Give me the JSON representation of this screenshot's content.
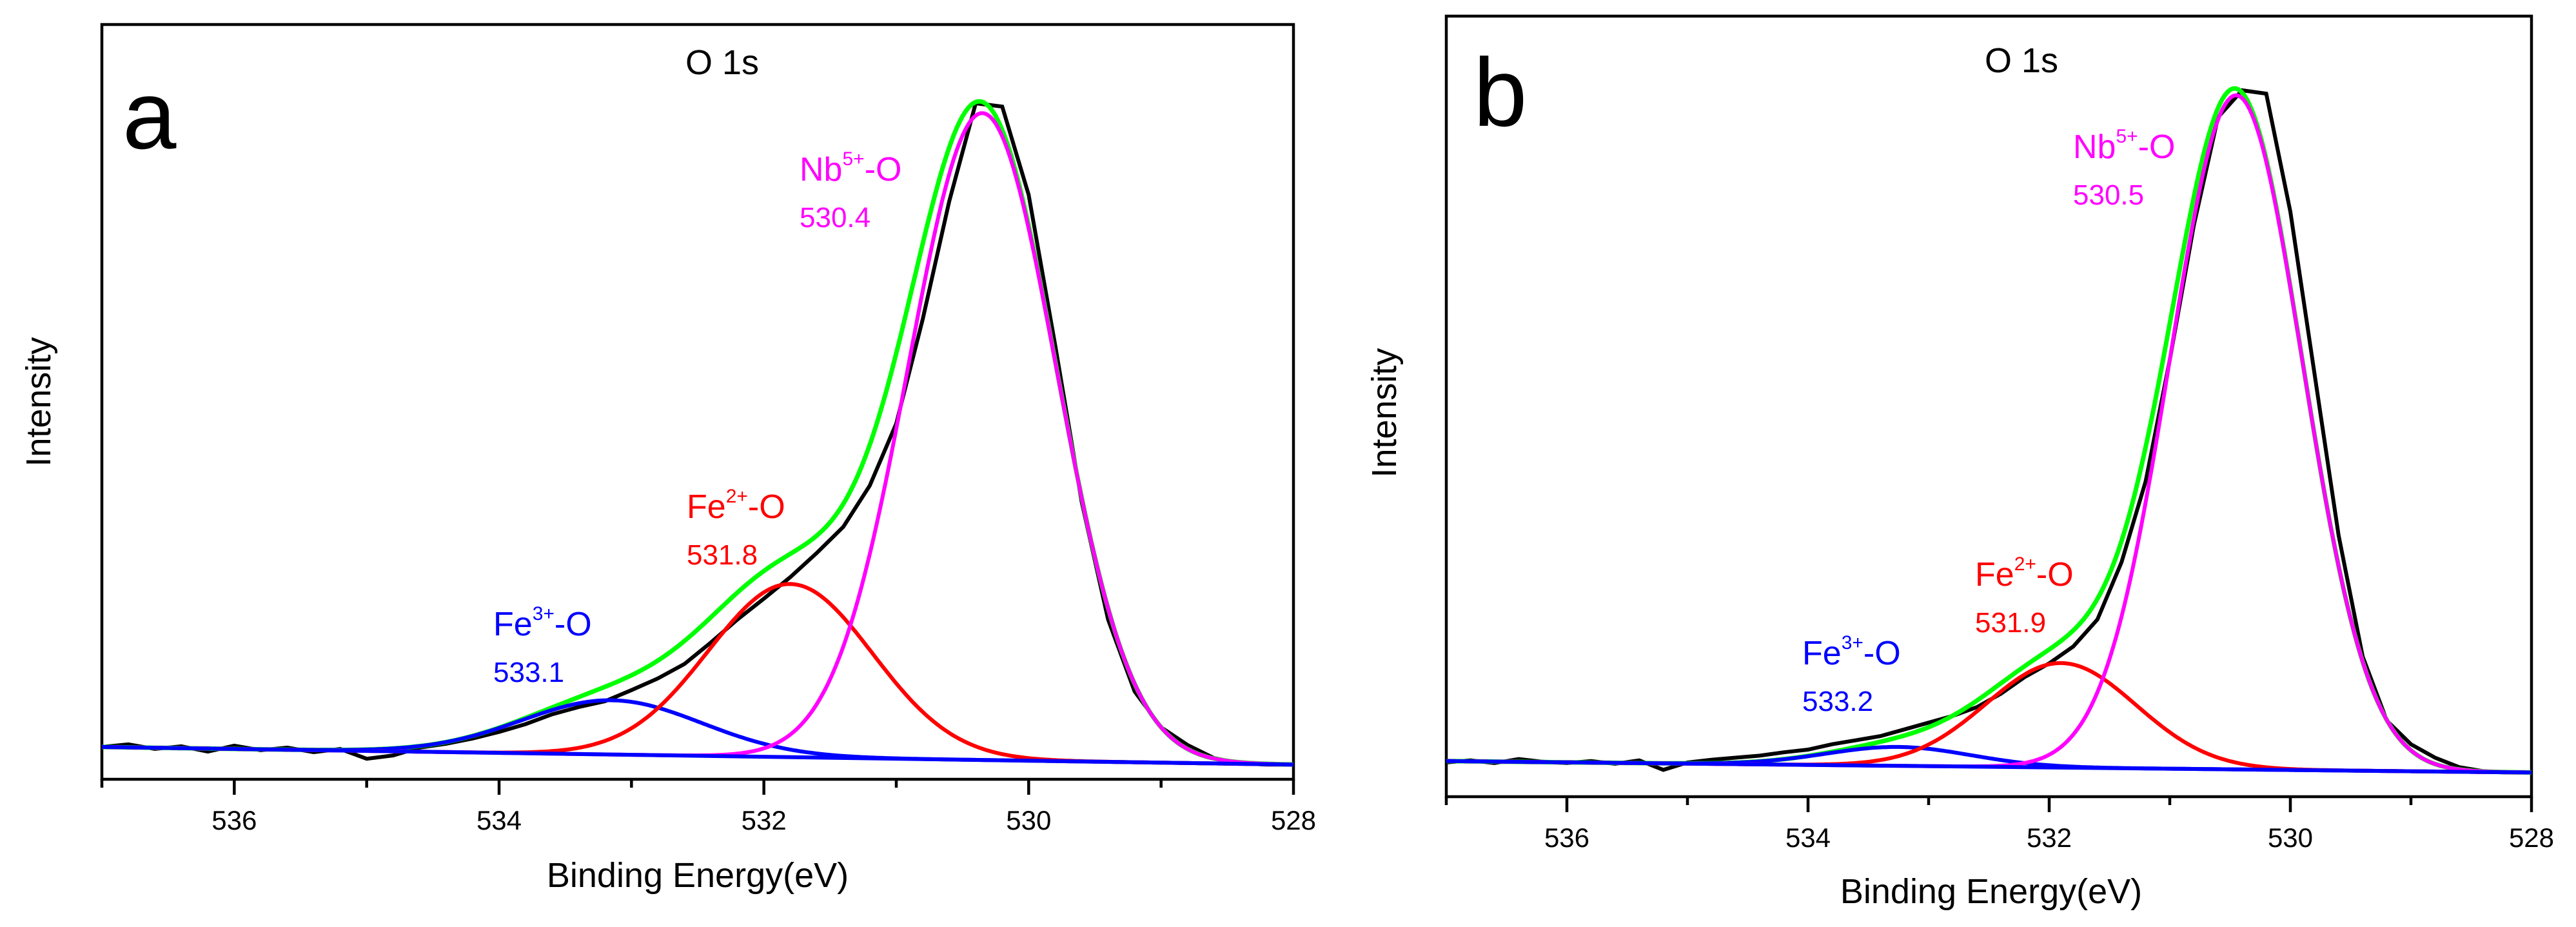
{
  "chart_data": [
    {
      "type": "line",
      "panel_label": "a",
      "title": "O 1s",
      "xlabel": "Binding Energy(eV)",
      "ylabel": "Intensity",
      "xlim": [
        537,
        528
      ],
      "x_reversed": true,
      "ylim": [
        0,
        1.05
      ],
      "grid": false,
      "xticks": [
        "536",
        "534",
        "532",
        "530",
        "528"
      ],
      "components": [
        {
          "element": "Nb",
          "charge": "5+",
          "suffix": "-O",
          "energy": "530.4",
          "color": "#ff00ff",
          "center": 530.35,
          "height": 0.99,
          "sigma": 0.56
        },
        {
          "element": "Fe",
          "charge": "2+",
          "suffix": "-O",
          "energy": "531.8",
          "color": "#ff0000",
          "center": 531.8,
          "height": 0.265,
          "sigma": 0.62
        },
        {
          "element": "Fe",
          "charge": "3+",
          "suffix": "-O",
          "energy": "533.1",
          "color": "#0000ff",
          "center": 533.15,
          "height": 0.083,
          "sigma": 0.68
        }
      ],
      "baseline": {
        "color": "#0000ff",
        "left": 0.005,
        "right": -0.022
      },
      "envelope_color": "#00ff00",
      "raw_color": "#000000",
      "raw_points": [
        [
          537.0,
          0.005
        ],
        [
          536.8,
          0.009
        ],
        [
          536.6,
          0.002
        ],
        [
          536.4,
          0.006
        ],
        [
          536.2,
          -0.002
        ],
        [
          536.0,
          0.007
        ],
        [
          535.8,
          0.0
        ],
        [
          535.6,
          0.004
        ],
        [
          535.4,
          -0.003
        ],
        [
          535.2,
          0.002
        ],
        [
          535.0,
          -0.013
        ],
        [
          534.8,
          -0.008
        ],
        [
          534.6,
          0.004
        ],
        [
          534.4,
          0.01
        ],
        [
          534.2,
          0.018
        ],
        [
          534.0,
          0.028
        ],
        [
          533.8,
          0.04
        ],
        [
          533.6,
          0.055
        ],
        [
          533.4,
          0.066
        ],
        [
          533.2,
          0.075
        ],
        [
          533.0,
          0.092
        ],
        [
          532.8,
          0.11
        ],
        [
          532.6,
          0.132
        ],
        [
          532.4,
          0.165
        ],
        [
          532.2,
          0.2
        ],
        [
          532.0,
          0.232
        ],
        [
          531.8,
          0.265
        ],
        [
          531.6,
          0.302
        ],
        [
          531.4,
          0.342
        ],
        [
          531.2,
          0.405
        ],
        [
          531.0,
          0.5
        ],
        [
          530.8,
          0.66
        ],
        [
          530.6,
          0.84
        ],
        [
          530.4,
          0.99
        ],
        [
          530.2,
          0.985
        ],
        [
          530.0,
          0.85
        ],
        [
          529.8,
          0.62
        ],
        [
          529.6,
          0.38
        ],
        [
          529.4,
          0.2
        ],
        [
          529.2,
          0.09
        ],
        [
          529.0,
          0.035
        ],
        [
          528.8,
          0.008
        ],
        [
          528.6,
          -0.012
        ],
        [
          528.4,
          -0.02
        ],
        [
          528.2,
          -0.022
        ],
        [
          528.0,
          -0.022
        ]
      ]
    },
    {
      "type": "line",
      "panel_label": "b",
      "title": "O 1s",
      "xlabel": "Binding Energy(eV)",
      "ylabel": "Intensity",
      "xlim": [
        537,
        528
      ],
      "x_reversed": true,
      "ylim": [
        0,
        1.05
      ],
      "grid": false,
      "xticks": [
        "536",
        "534",
        "532",
        "530",
        "528"
      ],
      "components": [
        {
          "element": "Nb",
          "charge": "5+",
          "suffix": "-O",
          "energy": "530.5",
          "color": "#ff00ff",
          "center": 530.45,
          "height": 1.0,
          "sigma": 0.55
        },
        {
          "element": "Fe",
          "charge": "2+",
          "suffix": "-O",
          "energy": "531.9",
          "color": "#ff0000",
          "center": 531.9,
          "height": 0.155,
          "sigma": 0.62
        },
        {
          "element": "Fe",
          "charge": "3+",
          "suffix": "-O",
          "energy": "533.2",
          "color": "#0000ff",
          "center": 533.25,
          "height": 0.028,
          "sigma": 0.6
        }
      ],
      "baseline": {
        "color": "#0000ff",
        "left": 0.005,
        "right": -0.012
      },
      "envelope_color": "#00ff00",
      "raw_color": "#000000",
      "raw_points": [
        [
          537.0,
          0.003
        ],
        [
          536.8,
          0.006
        ],
        [
          536.6,
          0.002
        ],
        [
          536.4,
          0.008
        ],
        [
          536.2,
          0.004
        ],
        [
          536.0,
          0.002
        ],
        [
          535.8,
          0.005
        ],
        [
          535.6,
          0.001
        ],
        [
          535.4,
          0.006
        ],
        [
          535.2,
          -0.008
        ],
        [
          535.0,
          0.003
        ],
        [
          534.8,
          0.007
        ],
        [
          534.6,
          0.01
        ],
        [
          534.4,
          0.013
        ],
        [
          534.2,
          0.018
        ],
        [
          534.0,
          0.022
        ],
        [
          533.8,
          0.03
        ],
        [
          533.6,
          0.036
        ],
        [
          533.4,
          0.042
        ],
        [
          533.2,
          0.052
        ],
        [
          533.0,
          0.062
        ],
        [
          532.8,
          0.072
        ],
        [
          532.6,
          0.085
        ],
        [
          532.4,
          0.105
        ],
        [
          532.2,
          0.13
        ],
        [
          532.0,
          0.15
        ],
        [
          531.8,
          0.175
        ],
        [
          531.6,
          0.215
        ],
        [
          531.4,
          0.3
        ],
        [
          531.2,
          0.42
        ],
        [
          531.0,
          0.6
        ],
        [
          530.8,
          0.8
        ],
        [
          530.6,
          0.96
        ],
        [
          530.4,
          1.0
        ],
        [
          530.2,
          0.995
        ],
        [
          530.0,
          0.82
        ],
        [
          529.8,
          0.58
        ],
        [
          529.6,
          0.34
        ],
        [
          529.4,
          0.16
        ],
        [
          529.2,
          0.065
        ],
        [
          529.0,
          0.03
        ],
        [
          528.8,
          0.01
        ],
        [
          528.6,
          -0.004
        ],
        [
          528.4,
          -0.01
        ],
        [
          528.2,
          -0.012
        ],
        [
          528.0,
          -0.012
        ]
      ]
    }
  ]
}
